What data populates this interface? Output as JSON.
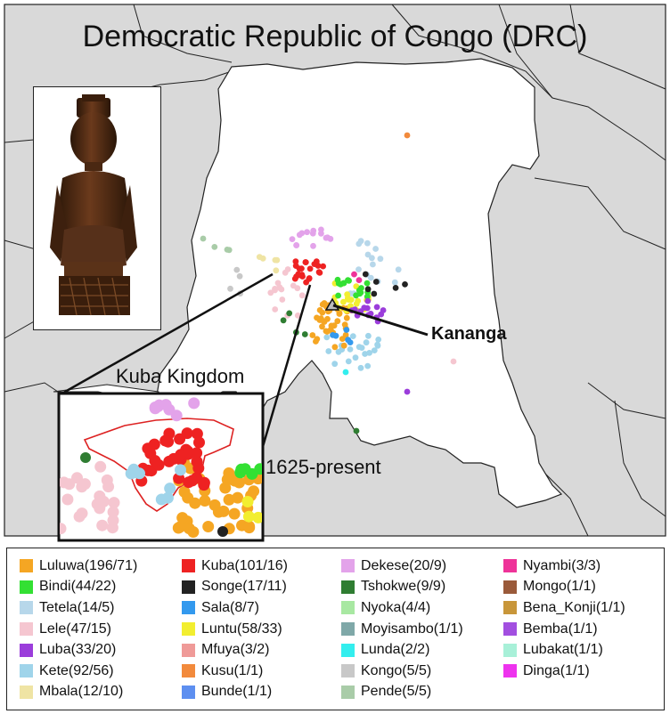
{
  "map": {
    "title": "Democratic Republic of Congo (DRC)",
    "city_label": "Kananga",
    "inset_title": "Kuba Kingdom",
    "inset_date": "1625-present",
    "artifact_icon": "statue-figure-icon",
    "city_marker_icon": "triangle-marker-icon"
  },
  "legend": {
    "columns": [
      [
        {
          "label": "Luluwa(196/71)",
          "color": "#f5a623"
        },
        {
          "label": "Bindi(44/22)",
          "color": "#33e033"
        },
        {
          "label": "Tetela(14/5)",
          "color": "#b7d7ea"
        },
        {
          "label": "Lele(47/15)",
          "color": "#f5c6d0"
        },
        {
          "label": "Luba(33/20)",
          "color": "#9b3ddb"
        },
        {
          "label": "Kete(92/56)",
          "color": "#9fd4ea"
        },
        {
          "label": "Mbala(12/10)",
          "color": "#efe4a4"
        }
      ],
      [
        {
          "label": "Kuba(101/16)",
          "color": "#ee2222"
        },
        {
          "label": "Songe(17/11)",
          "color": "#222222"
        },
        {
          "label": "Sala(8/7)",
          "color": "#3399ee"
        },
        {
          "label": "Luntu(58/33)",
          "color": "#f2ee30"
        },
        {
          "label": "Mfuya(3/2)",
          "color": "#ef9a98"
        },
        {
          "label": "Kusu(1/1)",
          "color": "#f28a3c"
        },
        {
          "label": "Bunde(1/1)",
          "color": "#5d8ff0"
        }
      ],
      [
        {
          "label": "Dekese(20/9)",
          "color": "#e3a3ea"
        },
        {
          "label": "Tshokwe(9/9)",
          "color": "#2f7d32"
        },
        {
          "label": "Nyoka(4/4)",
          "color": "#a8e8a2"
        },
        {
          "label": "Moyisambo(1/1)",
          "color": "#7fa8a8"
        },
        {
          "label": "Lunda(2/2)",
          "color": "#33eeee"
        },
        {
          "label": "Kongo(5/5)",
          "color": "#c8c8c8"
        },
        {
          "label": "Pende(5/5)",
          "color": "#a9cca8"
        }
      ],
      [
        {
          "label": "Nyambi(3/3)",
          "color": "#ee3399"
        },
        {
          "label": "Mongo(1/1)",
          "color": "#9a5a3a"
        },
        {
          "label": "Bena_Konji(1/1)",
          "color": "#c8963a"
        },
        {
          "label": "Bemba(1/1)",
          "color": "#a24fe0"
        },
        {
          "label": "Lubakat(1/1)",
          "color": "#a8f0d8"
        },
        {
          "label": "Dinga(1/1)",
          "color": "#ee33ee"
        }
      ]
    ]
  }
}
